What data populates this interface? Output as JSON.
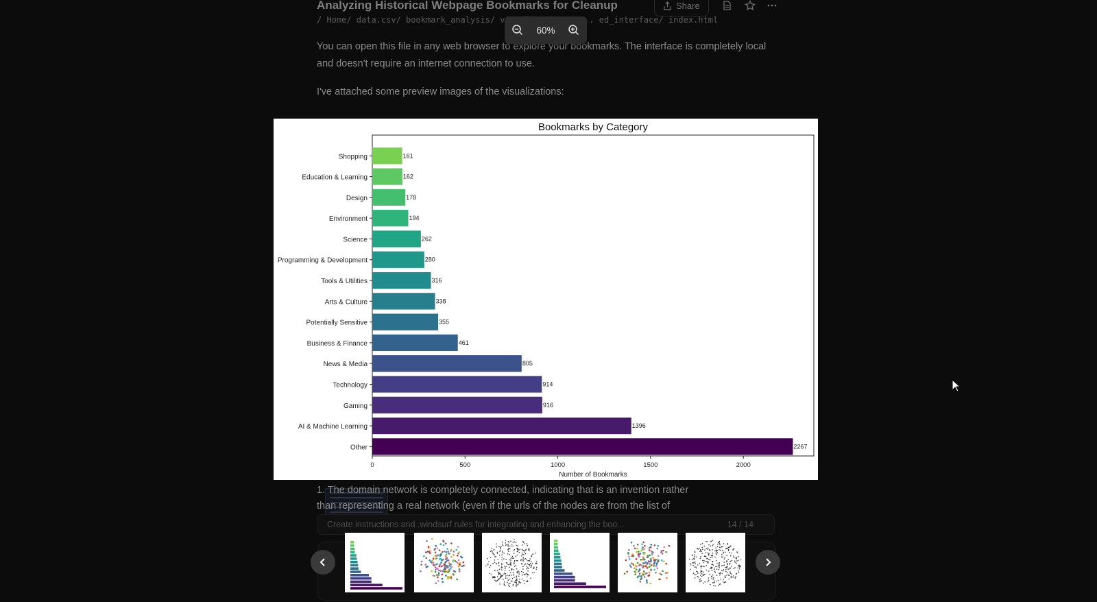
{
  "header": {
    "title": "Analyzing Historical Webpage Bookmarks for Cleanup",
    "share_label": "Share",
    "code_line": "/ Home/ data.csv/ bookmark_analysis/ visualizations/ ... ed_interface/ index.html"
  },
  "conversation": {
    "para1": "You can open this file in any web browser to explore your bookmarks. The interface is completely local and doesn't require an internet connection to use.",
    "para2": "I've attached some preview images of the visualizations:",
    "bottom_text_line1": "1. The domain network is completely connected, indicating that is an invention rather",
    "bottom_text_line2": "than representing a real network (even if the urls of the nodes are from the list of",
    "task_text": "Create instructions and .windsurf rules for integrating and enhancing the boo...",
    "task_count": "14 / 14"
  },
  "zoom": {
    "level": "60%"
  },
  "chart_data": {
    "type": "bar",
    "orientation": "horizontal",
    "title": "Bookmarks by Category",
    "xlabel": "Number of Bookmarks",
    "ylabel": "",
    "xlim": [
      0,
      2380
    ],
    "xticks": [
      "0",
      "500",
      "1000",
      "1500",
      "2000"
    ],
    "categories": [
      "Shopping",
      "Education & Learning",
      "Design",
      "Environment",
      "Science",
      "Programming & Development",
      "Tools & Utilities",
      "Arts & Culture",
      "Potentially Sensitive",
      "Business & Finance",
      "News & Media",
      "Technology",
      "Gaming",
      "AI & Machine Learning",
      "Other"
    ],
    "values": [
      161,
      162,
      178,
      194,
      262,
      280,
      316,
      338,
      355,
      461,
      805,
      914,
      916,
      1396,
      2267
    ],
    "value_labels": [
      "161",
      "162",
      "178",
      "194",
      "262",
      "280",
      "316",
      "338",
      "355",
      "461",
      "805",
      "914",
      "916",
      "1396",
      "2267"
    ],
    "colors": [
      "#7ad151",
      "#5ec962",
      "#44bf70",
      "#2fb47c",
      "#21a685",
      "#1f988b",
      "#228b8d",
      "#277f8e",
      "#2c728e",
      "#33638d",
      "#3b528b",
      "#433e85",
      "#472d7b",
      "#481a6c",
      "#440154"
    ],
    "grid": false,
    "legend": "none"
  },
  "thumbnails": [
    {
      "name": "thumbnail-category-chart",
      "kind": "bars",
      "active": true
    },
    {
      "name": "thumbnail-cluster-scatter",
      "kind": "scatter"
    },
    {
      "name": "thumbnail-domain-network",
      "kind": "network"
    },
    {
      "name": "thumbnail-category-chart-alt",
      "kind": "bars"
    },
    {
      "name": "thumbnail-cluster-scatter-alt",
      "kind": "scatter"
    },
    {
      "name": "thumbnail-domain-network-alt",
      "kind": "network"
    }
  ],
  "colors": {
    "background": "#0c0c0c",
    "zoombar": "#2c2c2c",
    "chart_bg": "#ffffff"
  }
}
